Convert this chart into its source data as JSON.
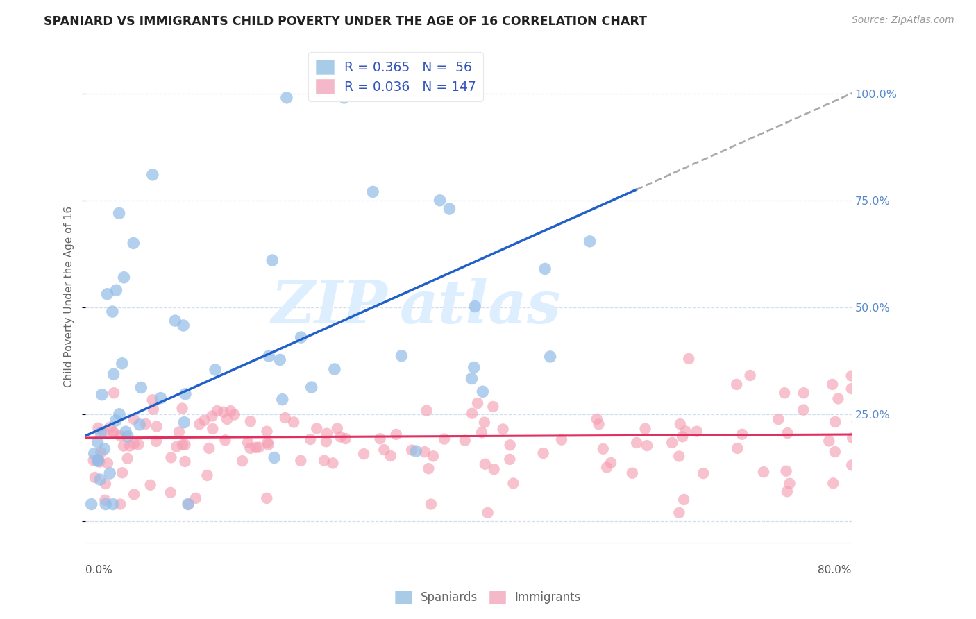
{
  "title": "SPANIARD VS IMMIGRANTS CHILD POVERTY UNDER THE AGE OF 16 CORRELATION CHART",
  "source": "Source: ZipAtlas.com",
  "ylabel": "Child Poverty Under the Age of 16",
  "xlim": [
    0.0,
    0.8
  ],
  "ylim": [
    -0.05,
    1.1
  ],
  "yticks": [
    0.0,
    0.25,
    0.5,
    0.75,
    1.0
  ],
  "ytick_labels": [
    "",
    "25.0%",
    "50.0%",
    "75.0%",
    "100.0%"
  ],
  "spaniards_color": "#92bde8",
  "immigrants_color": "#f5a0b5",
  "spaniards_line_color": "#2060c8",
  "immigrants_line_color": "#e03060",
  "background_color": "#ffffff",
  "grid_color": "#d0dff0",
  "legend_R1": "0.365",
  "legend_N1": "56",
  "legend_R2": "0.036",
  "legend_N2": "147",
  "legend_color1": "#a8cce8",
  "legend_color2": "#f5b8c8",
  "legend_text_color": "#3355bb",
  "title_color": "#222222",
  "source_color": "#999999",
  "ylabel_color": "#666666",
  "ytick_color": "#5588cc",
  "xtick_label_color": "#555555",
  "watermark_color": "#ddeeff"
}
